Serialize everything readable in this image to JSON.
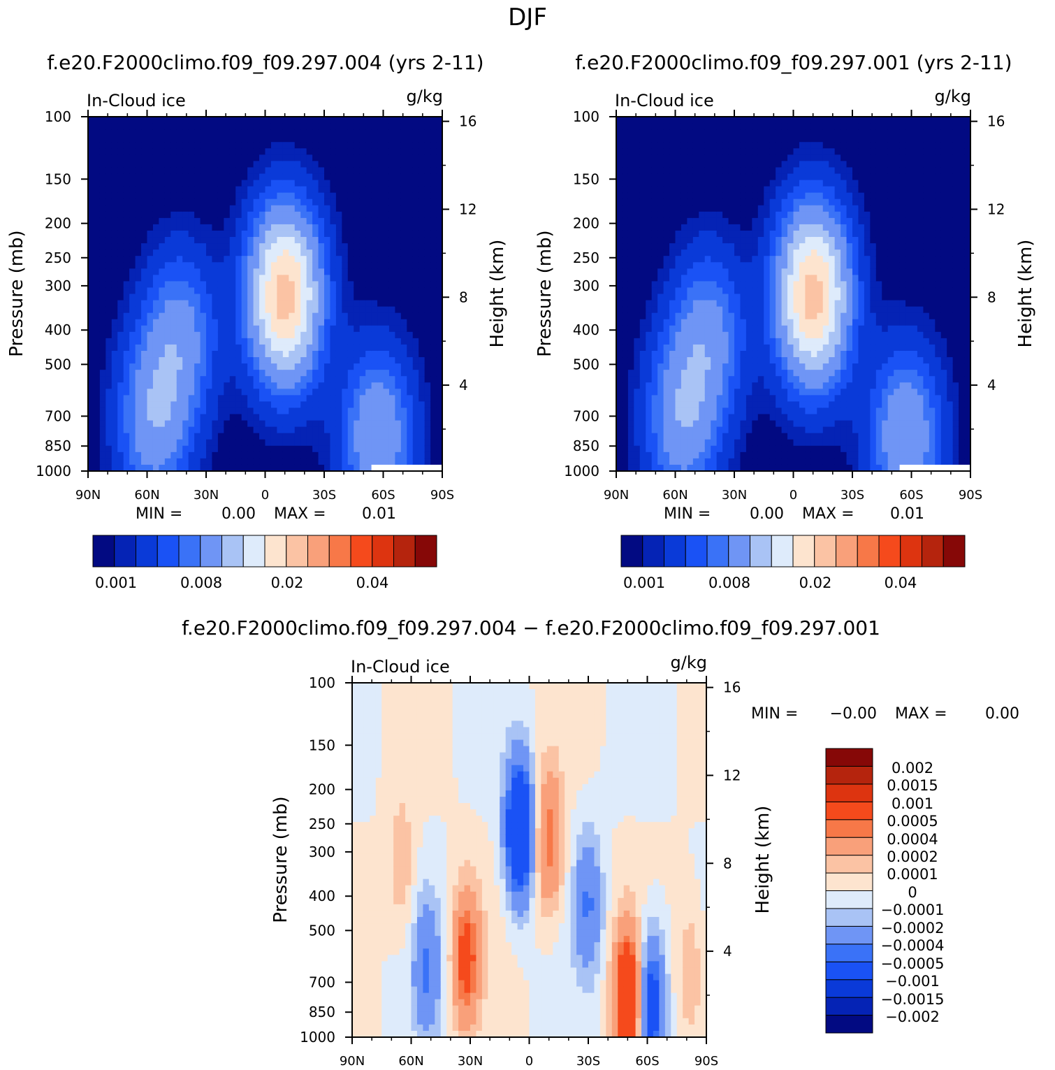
{
  "page_title": "DJF",
  "colors": {
    "seq": [
      "#020a82",
      "#0523b5",
      "#0a3ad8",
      "#1a52f5",
      "#3a72f7",
      "#6f95f5",
      "#a9c3f5",
      "#deebfb",
      "#fde4cf",
      "#fbc3a4",
      "#f9a07a",
      "#f77848",
      "#f54a1c",
      "#dd3410",
      "#b5240d",
      "#860807"
    ],
    "diff": [
      "#020a82",
      "#0523b5",
      "#0a3ad8",
      "#1a52f5",
      "#3a72f7",
      "#6f95f5",
      "#a9c3f5",
      "#deebfb",
      "#fde4cf",
      "#fbc3a4",
      "#f9a07a",
      "#f77848",
      "#f54a1c",
      "#dd3410",
      "#b5240d",
      "#860807"
    ]
  },
  "chart_data": [
    {
      "type": "heatmap",
      "title": "f.e20.F2000climo.f09_f09.297.004 (yrs 2-11)",
      "left_label": "In-Cloud ice",
      "right_label": "g/kg",
      "ylabel": "Pressure (mb)",
      "ylabel_right": "Height (km)",
      "x_ticks": [
        "90N",
        "60N",
        "30N",
        "0",
        "30S",
        "60S",
        "90S"
      ],
      "y_ticks": [
        "100",
        "150",
        "200",
        "250",
        "300",
        "400",
        "500",
        "700",
        "850",
        "1000"
      ],
      "height_ticks": [
        "16",
        "12",
        "8",
        "4"
      ],
      "ylim": [
        1000,
        100
      ],
      "stats": {
        "min_label": "MIN =",
        "min_value": "0.00",
        "max_label": "MAX =",
        "max_value": "0.01"
      },
      "colorbar_labels": [
        "0.001",
        "0.008",
        "0.02",
        "0.04"
      ],
      "peak_value": 0.013,
      "lobes": [
        {
          "lat": -10,
          "p": 320,
          "amp": 1.0
        },
        {
          "lat": 43,
          "p": 420,
          "amp": 0.35
        },
        {
          "lat": 57,
          "p": 720,
          "amp": 0.4
        },
        {
          "lat": -57,
          "p": 800,
          "amp": 0.45
        }
      ]
    },
    {
      "type": "heatmap",
      "title": "f.e20.F2000climo.f09_f09.297.001 (yrs 2-11)",
      "left_label": "In-Cloud ice",
      "right_label": "g/kg",
      "ylabel": "Pressure (mb)",
      "ylabel_right": "Height (km)",
      "x_ticks": [
        "90N",
        "60N",
        "30N",
        "0",
        "30S",
        "60S",
        "90S"
      ],
      "y_ticks": [
        "100",
        "150",
        "200",
        "250",
        "300",
        "400",
        "500",
        "700",
        "850",
        "1000"
      ],
      "height_ticks": [
        "16",
        "12",
        "8",
        "4"
      ],
      "ylim": [
        1000,
        100
      ],
      "stats": {
        "min_label": "MIN =",
        "min_value": "0.00",
        "max_label": "MAX =",
        "max_value": "0.01"
      },
      "colorbar_labels": [
        "0.001",
        "0.008",
        "0.02",
        "0.04"
      ],
      "peak_value": 0.013,
      "lobes": [
        {
          "lat": -10,
          "p": 320,
          "amp": 1.0
        },
        {
          "lat": 43,
          "p": 420,
          "amp": 0.35
        },
        {
          "lat": 57,
          "p": 720,
          "amp": 0.4
        },
        {
          "lat": -57,
          "p": 800,
          "amp": 0.45
        }
      ]
    },
    {
      "type": "heatmap",
      "title": "f.e20.F2000climo.f09_f09.297.004 − f.e20.F2000climo.f09_f09.297.001",
      "left_label": "In-Cloud ice",
      "right_label": "g/kg",
      "ylabel": "Pressure (mb)",
      "ylabel_right": "Height (km)",
      "x_ticks": [
        "90N",
        "60N",
        "30N",
        "0",
        "30S",
        "60S",
        "90S"
      ],
      "y_ticks": [
        "100",
        "150",
        "200",
        "250",
        "300",
        "400",
        "500",
        "700",
        "850",
        "1000"
      ],
      "height_ticks": [
        "16",
        "12",
        "8",
        "4"
      ],
      "ylim": [
        1000,
        100
      ],
      "stats": {
        "min_label": "MIN =",
        "min_value": "−0.00",
        "max_label": "MAX =",
        "max_value": "0.00"
      },
      "colorbar_labels": [
        "0.002",
        "0.0015",
        "0.001",
        "0.0005",
        "0.0004",
        "0.0002",
        "0.0001",
        "0",
        "−0.0001",
        "−0.0002",
        "−0.0004",
        "−0.0005",
        "−0.001",
        "−0.0015",
        "−0.002"
      ],
      "anomalies": [
        {
          "lat": 5,
          "p": 260,
          "amp": -0.001
        },
        {
          "lat": -10,
          "p": 280,
          "amp": 0.0005
        },
        {
          "lat": 32,
          "p": 600,
          "amp": 0.0006
        },
        {
          "lat": 65,
          "p": 330,
          "amp": 0.0002
        },
        {
          "lat": 52,
          "p": 650,
          "amp": -0.0004
        },
        {
          "lat": -30,
          "p": 420,
          "amp": -0.0004
        },
        {
          "lat": -50,
          "p": 780,
          "amp": 0.0009
        },
        {
          "lat": -62,
          "p": 800,
          "amp": -0.0007
        },
        {
          "lat": -82,
          "p": 650,
          "amp": 0.0002
        }
      ]
    }
  ]
}
